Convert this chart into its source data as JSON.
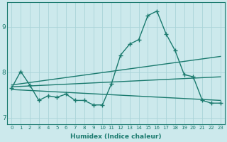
{
  "xlabel": "Humidex (Indice chaleur)",
  "bg_color": "#cce9ec",
  "grid_color": "#aad4d8",
  "line_color": "#1a7a6e",
  "xlim": [
    -0.5,
    23.5
  ],
  "ylim": [
    6.85,
    9.55
  ],
  "yticks": [
    7,
    8,
    9
  ],
  "xticks": [
    0,
    1,
    2,
    3,
    4,
    5,
    6,
    7,
    8,
    9,
    10,
    11,
    12,
    13,
    14,
    15,
    16,
    17,
    18,
    19,
    20,
    21,
    22,
    23
  ],
  "series": [
    {
      "x": [
        0,
        1,
        2,
        3,
        4,
        5,
        6,
        7,
        8,
        9,
        10,
        11,
        12,
        13,
        14,
        15,
        16,
        17,
        18,
        19,
        20,
        21,
        22,
        23
      ],
      "y": [
        7.65,
        8.02,
        7.72,
        7.38,
        7.48,
        7.45,
        7.52,
        7.38,
        7.38,
        7.28,
        7.28,
        7.75,
        8.38,
        8.62,
        8.72,
        9.25,
        9.35,
        8.85,
        8.48,
        7.95,
        7.9,
        7.38,
        7.32,
        7.32
      ],
      "marker": "+",
      "markersize": 4,
      "linewidth": 1.0
    },
    {
      "x": [
        0,
        23
      ],
      "y": [
        7.72,
        8.35
      ],
      "marker": null,
      "markersize": 0,
      "linewidth": 1.0
    },
    {
      "x": [
        0,
        23
      ],
      "y": [
        7.68,
        7.9
      ],
      "marker": null,
      "markersize": 0,
      "linewidth": 1.0
    },
    {
      "x": [
        0,
        23
      ],
      "y": [
        7.62,
        7.38
      ],
      "marker": null,
      "markersize": 0,
      "linewidth": 1.0
    }
  ]
}
